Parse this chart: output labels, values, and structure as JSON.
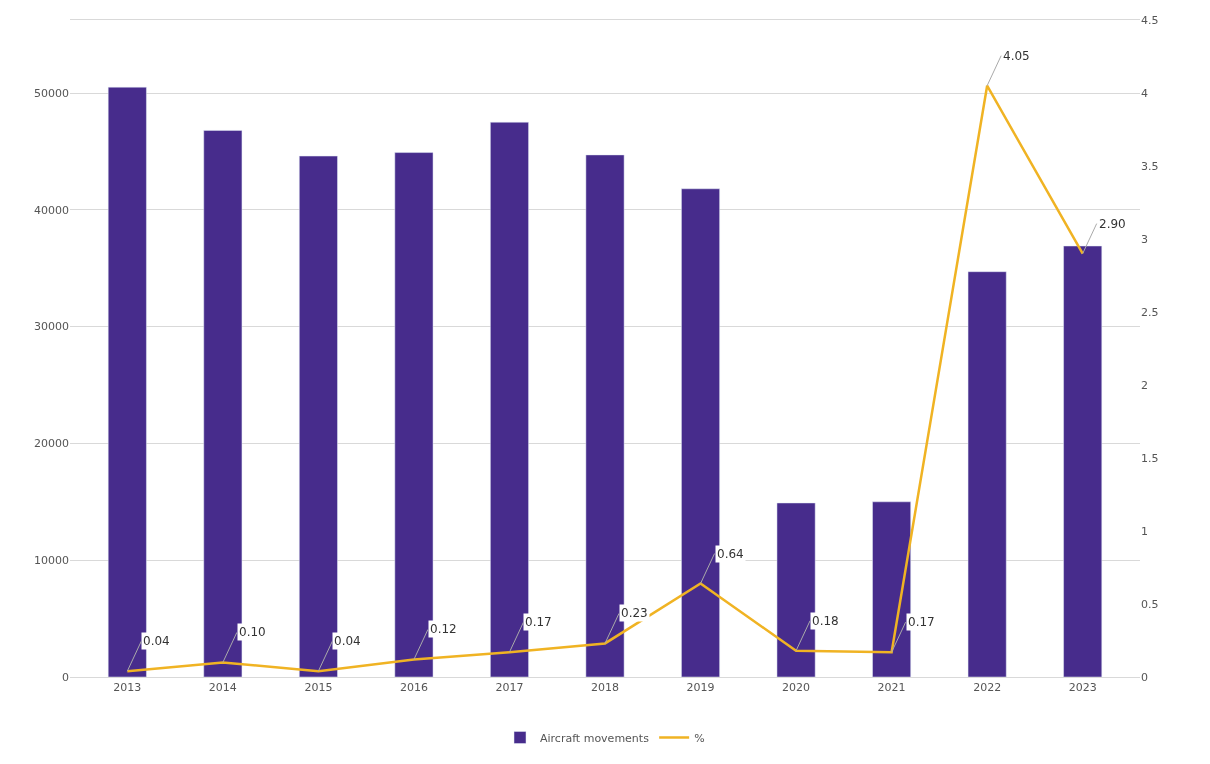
{
  "chart_data": {
    "type": "bar",
    "categories": [
      "2013",
      "2014",
      "2015",
      "2016",
      "2017",
      "2018",
      "2019",
      "2020",
      "2021",
      "2022",
      "2023"
    ],
    "series": [
      {
        "name": "Aircraft movements",
        "color": "#472c8c",
        "values": [
          50500,
          46800,
          44600,
          44900,
          47500,
          44700,
          41800,
          14900,
          15000,
          34700,
          36900
        ]
      },
      {
        "name": "%",
        "type": "line",
        "axis": "y2",
        "color": "#f0b323",
        "values": [
          0.04,
          0.1,
          0.04,
          0.12,
          0.17,
          0.23,
          0.64,
          0.18,
          0.17,
          4.05,
          2.9
        ],
        "value_labels": [
          "0.04",
          "0.10",
          "0.04",
          "0.12",
          "0.17",
          "0.23",
          "0.64",
          "0.18",
          "0.17",
          "4.05",
          "2.90"
        ]
      }
    ],
    "ylim": [
      0,
      56250
    ],
    "yticks": [
      0,
      10000,
      20000,
      30000,
      40000,
      50000
    ],
    "y2lim": [
      0,
      4.5
    ],
    "y2ticks": [
      0,
      0.5,
      1,
      1.5,
      2,
      2.5,
      3,
      3.5,
      4,
      4.5
    ],
    "grid": "y",
    "legend": "bottom",
    "marker": "none",
    "line_style": "solid"
  }
}
